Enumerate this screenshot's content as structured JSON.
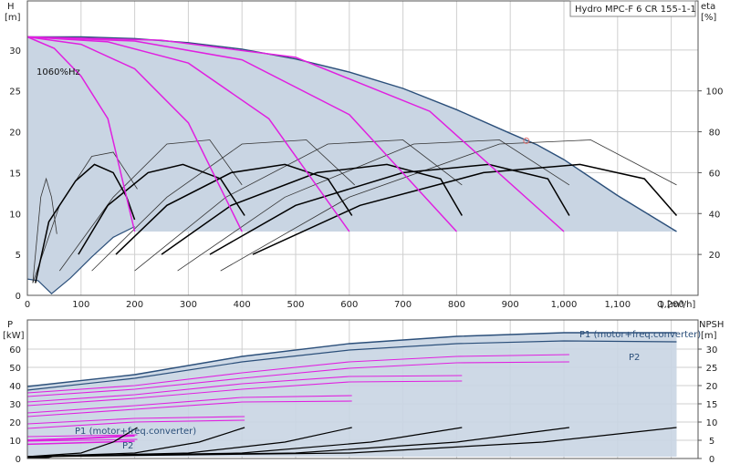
{
  "chart_data": [
    {
      "type": "line",
      "panel": "head-efficiency",
      "title": "Hydro MPC-F 6 CR 155-1-1",
      "xlabel": "Q [m³/h]",
      "ylabel": "H",
      "ylabel_unit": "[m]",
      "y2label": "eta",
      "y2label_unit": "[%]",
      "xlim": [
        0,
        1250
      ],
      "ylim": [
        0,
        36
      ],
      "y2lim": [
        0,
        144
      ],
      "xticks": [
        "0",
        "100",
        "200",
        "300",
        "400",
        "500",
        "600",
        "700",
        "800",
        "900",
        "1,000",
        "1,100",
        "1,200"
      ],
      "yticks": [
        "0",
        "5",
        "10",
        "15",
        "20",
        "25",
        "30"
      ],
      "y2ticks": [
        "20",
        "40",
        "60",
        "80",
        "100"
      ],
      "grid": true,
      "annotation": "1060%Hz",
      "colors": {
        "envelope": "#c9d5e3",
        "envelope_edge": "#2b4f7a",
        "qh_curve": "#e020e0",
        "eta_curve": "#000000"
      },
      "max_curve": [
        [
          0,
          31.6
        ],
        [
          100,
          31.6
        ],
        [
          200,
          31.4
        ],
        [
          300,
          30.9
        ],
        [
          400,
          30.1
        ],
        [
          500,
          28.9
        ],
        [
          600,
          27.3
        ],
        [
          700,
          25.3
        ],
        [
          800,
          22.7
        ],
        [
          900,
          19.8
        ],
        [
          950,
          18.4
        ],
        [
          1000,
          16.6
        ],
        [
          1100,
          12.2
        ],
        [
          1210,
          7.8
        ]
      ],
      "min_speed_curve": [
        [
          0,
          2.0
        ],
        [
          20,
          1.8
        ],
        [
          45,
          0.2
        ],
        [
          80,
          2.1
        ],
        [
          120,
          4.7
        ],
        [
          160,
          7.1
        ],
        [
          200,
          8.4
        ]
      ],
      "min_head": 7.8,
      "duty_point": [
        930,
        18.9
      ],
      "qh_curves": [
        [
          [
            0,
            31.6
          ],
          [
            50,
            30.2
          ],
          [
            100,
            26.8
          ],
          [
            150,
            21.6
          ],
          [
            200,
            7.8
          ]
        ],
        [
          [
            0,
            31.6
          ],
          [
            100,
            30.7
          ],
          [
            200,
            27.7
          ],
          [
            300,
            21.1
          ],
          [
            400,
            7.8
          ]
        ],
        [
          [
            0,
            31.6
          ],
          [
            150,
            31.0
          ],
          [
            300,
            28.4
          ],
          [
            450,
            21.6
          ],
          [
            600,
            7.8
          ]
        ],
        [
          [
            0,
            31.6
          ],
          [
            200,
            31.1
          ],
          [
            400,
            28.8
          ],
          [
            600,
            22.1
          ],
          [
            800,
            7.8
          ]
        ],
        [
          [
            0,
            31.6
          ],
          [
            250,
            31.2
          ],
          [
            500,
            29.1
          ],
          [
            750,
            22.5
          ],
          [
            1000,
            7.8
          ]
        ]
      ],
      "eta_curves_heavy": [
        [
          [
            15,
            6
          ],
          [
            40,
            36
          ],
          [
            90,
            56
          ],
          [
            125,
            64
          ],
          [
            160,
            60
          ],
          [
            185,
            48
          ],
          [
            200,
            37
          ]
        ],
        [
          [
            95,
            20
          ],
          [
            150,
            44
          ],
          [
            225,
            60
          ],
          [
            290,
            64
          ],
          [
            360,
            57
          ],
          [
            405,
            39
          ]
        ],
        [
          [
            165,
            20
          ],
          [
            260,
            44
          ],
          [
            380,
            60
          ],
          [
            480,
            64
          ],
          [
            560,
            57
          ],
          [
            605,
            39
          ]
        ],
        [
          [
            250,
            20
          ],
          [
            380,
            44
          ],
          [
            540,
            60
          ],
          [
            670,
            64
          ],
          [
            770,
            57
          ],
          [
            810,
            39
          ]
        ],
        [
          [
            340,
            20
          ],
          [
            500,
            44
          ],
          [
            700,
            60
          ],
          [
            860,
            64
          ],
          [
            970,
            57
          ],
          [
            1010,
            39
          ]
        ],
        [
          [
            420,
            20
          ],
          [
            620,
            44
          ],
          [
            850,
            60
          ],
          [
            1030,
            64
          ],
          [
            1150,
            57
          ],
          [
            1210,
            39
          ]
        ]
      ],
      "eta_curves_light": [
        [
          [
            10,
            6
          ],
          [
            25,
            48
          ],
          [
            35,
            57
          ],
          [
            45,
            48
          ],
          [
            55,
            30
          ]
        ],
        [
          [
            10,
            6
          ],
          [
            60,
            44
          ],
          [
            120,
            68
          ],
          [
            160,
            70
          ],
          [
            205,
            52
          ]
        ],
        [
          [
            60,
            12
          ],
          [
            160,
            48
          ],
          [
            260,
            74
          ],
          [
            340,
            76
          ],
          [
            400,
            54
          ]
        ],
        [
          [
            120,
            12
          ],
          [
            260,
            48
          ],
          [
            400,
            74
          ],
          [
            520,
            76
          ],
          [
            610,
            54
          ]
        ],
        [
          [
            200,
            12
          ],
          [
            370,
            48
          ],
          [
            560,
            74
          ],
          [
            700,
            76
          ],
          [
            810,
            54
          ]
        ],
        [
          [
            280,
            12
          ],
          [
            480,
            48
          ],
          [
            720,
            74
          ],
          [
            880,
            76
          ],
          [
            1010,
            54
          ]
        ],
        [
          [
            360,
            12
          ],
          [
            600,
            48
          ],
          [
            880,
            74
          ],
          [
            1050,
            76
          ],
          [
            1210,
            54
          ]
        ]
      ]
    },
    {
      "type": "line",
      "panel": "power-npsh",
      "xlim": [
        0,
        1250
      ],
      "ylabel": "P",
      "ylabel_unit": "[kW]",
      "ylim": [
        0,
        76
      ],
      "yticks": [
        "0",
        "10",
        "20",
        "30",
        "40",
        "50",
        "60"
      ],
      "y2label": "NPSH",
      "y2label_unit": "[m]",
      "y2lim": [
        0,
        38
      ],
      "y2ticks": [
        "0",
        "5",
        "10",
        "15",
        "20",
        "25",
        "30"
      ],
      "labels": {
        "p1_max": "P1 (motor+freq.converter)",
        "p2_max": "P2",
        "p1_min": "P1 (motor+freq.converter)",
        "p2_min": "P2"
      },
      "p1_max": [
        [
          0,
          39.5
        ],
        [
          200,
          46
        ],
        [
          400,
          56
        ],
        [
          600,
          63
        ],
        [
          800,
          67
        ],
        [
          1000,
          69
        ],
        [
          1210,
          69
        ]
      ],
      "p2_max": [
        [
          0,
          37.5
        ],
        [
          200,
          44
        ],
        [
          400,
          53
        ],
        [
          600,
          59.5
        ],
        [
          800,
          63
        ],
        [
          1000,
          64.5
        ],
        [
          1210,
          64
        ]
      ],
      "p1_min": [
        [
          0,
          10
        ],
        [
          100,
          11
        ],
        [
          200,
          12.5
        ]
      ],
      "p2_min": [
        [
          0,
          7.8
        ],
        [
          100,
          8.6
        ],
        [
          200,
          9.5
        ]
      ],
      "mag_power_curves": [
        [
          [
            0,
            36
          ],
          [
            200,
            40
          ],
          [
            400,
            47
          ],
          [
            600,
            53
          ],
          [
            800,
            56
          ],
          [
            1010,
            57
          ]
        ],
        [
          [
            0,
            34
          ],
          [
            200,
            38
          ],
          [
            400,
            44
          ],
          [
            600,
            49.5
          ],
          [
            800,
            52.5
          ],
          [
            1010,
            53
          ]
        ],
        [
          [
            0,
            31
          ],
          [
            200,
            35
          ],
          [
            400,
            41
          ],
          [
            600,
            45
          ],
          [
            810,
            45.5
          ]
        ],
        [
          [
            0,
            29
          ],
          [
            200,
            33
          ],
          [
            400,
            38
          ],
          [
            600,
            42
          ],
          [
            810,
            42.5
          ]
        ],
        [
          [
            0,
            25
          ],
          [
            200,
            29
          ],
          [
            400,
            33.5
          ],
          [
            605,
            34.5
          ]
        ],
        [
          [
            0,
            23
          ],
          [
            200,
            27
          ],
          [
            400,
            31
          ],
          [
            605,
            31.5
          ]
        ],
        [
          [
            0,
            19
          ],
          [
            200,
            22
          ],
          [
            405,
            23
          ]
        ],
        [
          [
            0,
            16.5
          ],
          [
            200,
            20
          ],
          [
            405,
            21
          ]
        ],
        [
          [
            0,
            12
          ],
          [
            205,
            13
          ]
        ],
        [
          [
            0,
            9.5
          ],
          [
            205,
            10.5
          ]
        ]
      ],
      "npsh_curves": [
        [
          [
            0,
            0.5
          ],
          [
            100,
            1.5
          ],
          [
            160,
            4.5
          ],
          [
            205,
            8.5
          ]
        ],
        [
          [
            0,
            0.5
          ],
          [
            200,
            1.5
          ],
          [
            320,
            4.5
          ],
          [
            405,
            8.5
          ]
        ],
        [
          [
            0,
            0.5
          ],
          [
            300,
            1.5
          ],
          [
            480,
            4.5
          ],
          [
            605,
            8.5
          ]
        ],
        [
          [
            0,
            0.5
          ],
          [
            400,
            1.5
          ],
          [
            640,
            4.5
          ],
          [
            810,
            8.5
          ]
        ],
        [
          [
            0,
            0.5
          ],
          [
            500,
            1.5
          ],
          [
            800,
            4.5
          ],
          [
            1010,
            8.5
          ]
        ],
        [
          [
            0,
            0.5
          ],
          [
            600,
            1.5
          ],
          [
            960,
            4.5
          ],
          [
            1210,
            8.5
          ]
        ]
      ],
      "npsh_min_stub": [
        [
          0,
          0.2
        ],
        [
          40,
          0.4
        ],
        [
          55,
          0.9
        ]
      ]
    }
  ]
}
